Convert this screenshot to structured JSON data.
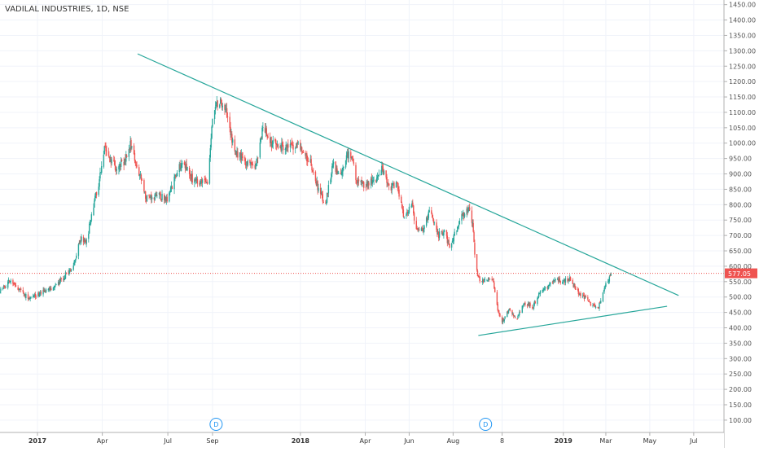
{
  "chart_data": {
    "type": "candlestick",
    "title": "VADILAL INDUSTRIES, 1D, NSE",
    "xlabel": "",
    "ylabel": "",
    "colors": {
      "up": "#26a69a",
      "down": "#ef5350",
      "trendline": "#26a69a",
      "price_line": "#ef5350",
      "grid": "#f0f3fa",
      "axis_text": "#555555",
      "event_marker": "#2196f3"
    },
    "ylim": [
      60,
      1465
    ],
    "y_ticks": [
      100,
      150,
      200,
      250,
      300,
      350,
      400,
      450,
      500,
      550,
      600,
      650,
      700,
      750,
      800,
      850,
      900,
      950,
      1000,
      1050,
      1100,
      1150,
      1200,
      1250,
      1300,
      1350,
      1400,
      1450
    ],
    "y_tick_labels": [
      "100.00",
      "150.00",
      "200.00",
      "250.00",
      "300.00",
      "350.00",
      "400.00",
      "450.00",
      "500.00",
      "550.00",
      "600.00",
      "650.00",
      "700.00",
      "750.00",
      "800.00",
      "850.00",
      "900.00",
      "950.00",
      "1000.00",
      "1050.00",
      "1100.00",
      "1150.00",
      "1200.00",
      "1250.00",
      "1300.00",
      "1350.00",
      "1400.00",
      "1450.00"
    ],
    "xlim": [
      "2016-11-10",
      "2019-08-12"
    ],
    "x_ticks": [
      {
        "date": "2017-01-01",
        "label": "2017",
        "bold": true
      },
      {
        "date": "2017-04-01",
        "label": "Apr",
        "bold": false
      },
      {
        "date": "2017-07-01",
        "label": "Jul",
        "bold": false
      },
      {
        "date": "2017-09-01",
        "label": "Sep",
        "bold": false
      },
      {
        "date": "2018-01-01",
        "label": "2018",
        "bold": true
      },
      {
        "date": "2018-04-01",
        "label": "Apr",
        "bold": false
      },
      {
        "date": "2018-06-01",
        "label": "Jun",
        "bold": false
      },
      {
        "date": "2018-08-01",
        "label": "Aug",
        "bold": false
      },
      {
        "date": "2018-10-08",
        "label": "8",
        "bold": false
      },
      {
        "date": "2019-01-01",
        "label": "2019",
        "bold": true
      },
      {
        "date": "2019-03-01",
        "label": "Mar",
        "bold": false
      },
      {
        "date": "2019-05-01",
        "label": "May",
        "bold": false
      },
      {
        "date": "2019-07-01",
        "label": "Jul",
        "bold": false
      }
    ],
    "last_price": 577.05,
    "last_price_label": "577.05",
    "events": [
      {
        "date": "2017-09-06",
        "label": "D"
      },
      {
        "date": "2018-09-15",
        "label": "D"
      }
    ],
    "trendlines": [
      {
        "name": "",
        "points": [
          {
            "x": "2017-05-20",
            "y": 1290
          },
          {
            "x": "2019-06-10",
            "y": 505
          }
        ]
      },
      {
        "name": "",
        "points": [
          {
            "x": "2018-09-05",
            "y": 375
          },
          {
            "x": "2019-05-25",
            "y": 470
          }
        ]
      }
    ],
    "anchors": [
      {
        "x": "2016-11-10",
        "y": 520
      },
      {
        "x": "2016-11-25",
        "y": 555
      },
      {
        "x": "2016-12-20",
        "y": 495
      },
      {
        "x": "2017-01-10",
        "y": 520
      },
      {
        "x": "2017-01-25",
        "y": 530
      },
      {
        "x": "2017-02-10",
        "y": 575
      },
      {
        "x": "2017-02-20",
        "y": 600
      },
      {
        "x": "2017-03-01",
        "y": 690
      },
      {
        "x": "2017-03-10",
        "y": 680
      },
      {
        "x": "2017-03-20",
        "y": 800
      },
      {
        "x": "2017-03-28",
        "y": 880
      },
      {
        "x": "2017-04-05",
        "y": 990
      },
      {
        "x": "2017-04-12",
        "y": 950
      },
      {
        "x": "2017-04-20",
        "y": 920
      },
      {
        "x": "2017-05-01",
        "y": 940
      },
      {
        "x": "2017-05-10",
        "y": 1000
      },
      {
        "x": "2017-05-20",
        "y": 920
      },
      {
        "x": "2017-06-01",
        "y": 820
      },
      {
        "x": "2017-06-15",
        "y": 830
      },
      {
        "x": "2017-07-01",
        "y": 820
      },
      {
        "x": "2017-07-15",
        "y": 920
      },
      {
        "x": "2017-07-25",
        "y": 930
      },
      {
        "x": "2017-08-05",
        "y": 880
      },
      {
        "x": "2017-08-15",
        "y": 870
      },
      {
        "x": "2017-08-25",
        "y": 870
      },
      {
        "x": "2017-09-01",
        "y": 1080
      },
      {
        "x": "2017-09-10",
        "y": 1140
      },
      {
        "x": "2017-09-20",
        "y": 1100
      },
      {
        "x": "2017-10-01",
        "y": 980
      },
      {
        "x": "2017-10-20",
        "y": 930
      },
      {
        "x": "2017-11-01",
        "y": 930
      },
      {
        "x": "2017-11-10",
        "y": 1060
      },
      {
        "x": "2017-11-20",
        "y": 1000
      },
      {
        "x": "2017-12-10",
        "y": 985
      },
      {
        "x": "2017-12-28",
        "y": 990
      },
      {
        "x": "2018-01-15",
        "y": 940
      },
      {
        "x": "2018-01-25",
        "y": 860
      },
      {
        "x": "2018-02-05",
        "y": 800
      },
      {
        "x": "2018-02-15",
        "y": 930
      },
      {
        "x": "2018-02-25",
        "y": 900
      },
      {
        "x": "2018-03-10",
        "y": 980
      },
      {
        "x": "2018-03-20",
        "y": 880
      },
      {
        "x": "2018-04-01",
        "y": 860
      },
      {
        "x": "2018-04-15",
        "y": 880
      },
      {
        "x": "2018-04-25",
        "y": 920
      },
      {
        "x": "2018-05-05",
        "y": 850
      },
      {
        "x": "2018-05-15",
        "y": 870
      },
      {
        "x": "2018-05-25",
        "y": 760
      },
      {
        "x": "2018-06-05",
        "y": 800
      },
      {
        "x": "2018-06-10",
        "y": 730
      },
      {
        "x": "2018-06-20",
        "y": 720
      },
      {
        "x": "2018-07-01",
        "y": 790
      },
      {
        "x": "2018-07-10",
        "y": 700
      },
      {
        "x": "2018-07-20",
        "y": 710
      },
      {
        "x": "2018-07-28",
        "y": 655
      },
      {
        "x": "2018-08-05",
        "y": 720
      },
      {
        "x": "2018-08-15",
        "y": 770
      },
      {
        "x": "2018-08-22",
        "y": 790
      },
      {
        "x": "2018-08-28",
        "y": 740
      },
      {
        "x": "2018-09-01",
        "y": 600
      },
      {
        "x": "2018-09-05",
        "y": 560
      },
      {
        "x": "2018-09-15",
        "y": 555
      },
      {
        "x": "2018-09-25",
        "y": 560
      },
      {
        "x": "2018-10-01",
        "y": 470
      },
      {
        "x": "2018-10-08",
        "y": 420
      },
      {
        "x": "2018-10-18",
        "y": 460
      },
      {
        "x": "2018-10-28",
        "y": 430
      },
      {
        "x": "2018-11-08",
        "y": 480
      },
      {
        "x": "2018-11-20",
        "y": 470
      },
      {
        "x": "2018-12-01",
        "y": 520
      },
      {
        "x": "2018-12-10",
        "y": 530
      },
      {
        "x": "2018-12-20",
        "y": 560
      },
      {
        "x": "2019-01-01",
        "y": 550
      },
      {
        "x": "2019-01-10",
        "y": 560
      },
      {
        "x": "2019-01-20",
        "y": 520
      },
      {
        "x": "2019-01-30",
        "y": 500
      },
      {
        "x": "2019-02-10",
        "y": 470
      },
      {
        "x": "2019-02-18",
        "y": 460
      },
      {
        "x": "2019-02-25",
        "y": 520
      },
      {
        "x": "2019-03-05",
        "y": 560
      },
      {
        "x": "2019-03-10",
        "y": 577
      }
    ]
  }
}
